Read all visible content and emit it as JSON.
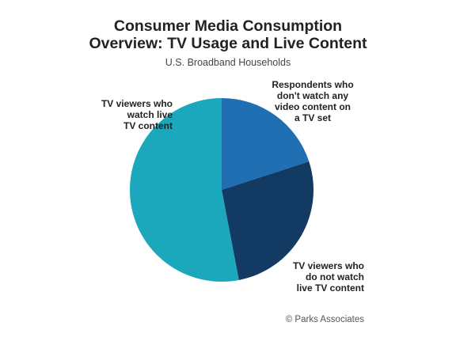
{
  "chart_data": {
    "type": "pie",
    "title": "Consumer Media Consumption Overview: TV Usage and Live Content",
    "title_lines": [
      "Consumer Media Consumption",
      "Overview: TV Usage and Live Content"
    ],
    "subtitle": "U.S. Broadband Households",
    "slices": [
      {
        "label": "Respondents who don't watch any video content on a TV set",
        "label_lines": [
          "Respondents who",
          "don't watch any",
          "video content on",
          "a TV set"
        ],
        "value": 20,
        "color": "#1f6fb2"
      },
      {
        "label": "TV viewers who do not watch live TV content",
        "label_lines": [
          "TV viewers who",
          "do not watch",
          "live TV content"
        ],
        "value": 27,
        "color": "#133a63"
      },
      {
        "label": "TV viewers who watch live TV content",
        "label_lines": [
          "TV viewers who",
          "watch live",
          "TV content"
        ],
        "value": 53,
        "color": "#1ba8bd"
      }
    ],
    "source": "© Parks Associates"
  }
}
